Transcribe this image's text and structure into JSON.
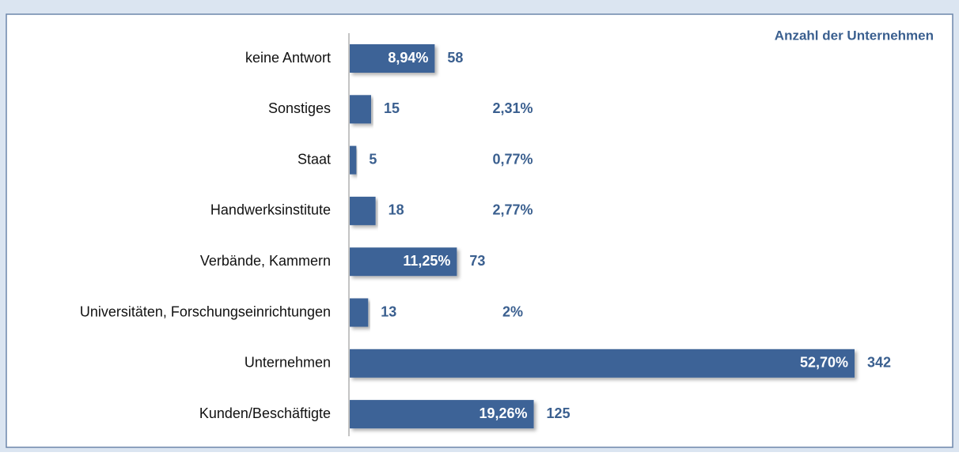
{
  "chart_data": {
    "type": "bar",
    "orientation": "horizontal",
    "title": "Anzahl der Unternehmen",
    "categories": [
      "keine Antwort",
      "Sonstiges",
      "Staat",
      "Handwerksinstitute",
      "Verbände, Kammern",
      "Universitäten, Forschungseinrichtungen",
      "Unternehmen",
      "Kunden/Beschäftigte"
    ],
    "values": [
      58,
      15,
      5,
      18,
      73,
      13,
      342,
      125
    ],
    "percent": [
      8.94,
      2.31,
      0.77,
      2.77,
      11.25,
      2,
      52.7,
      19.26
    ],
    "percent_labels": [
      "8,94%",
      "2,31%",
      "0,77%",
      "2,77%",
      "11,25%",
      "2%",
      "52,70%",
      "19,26%"
    ],
    "color": "#3c6397"
  }
}
